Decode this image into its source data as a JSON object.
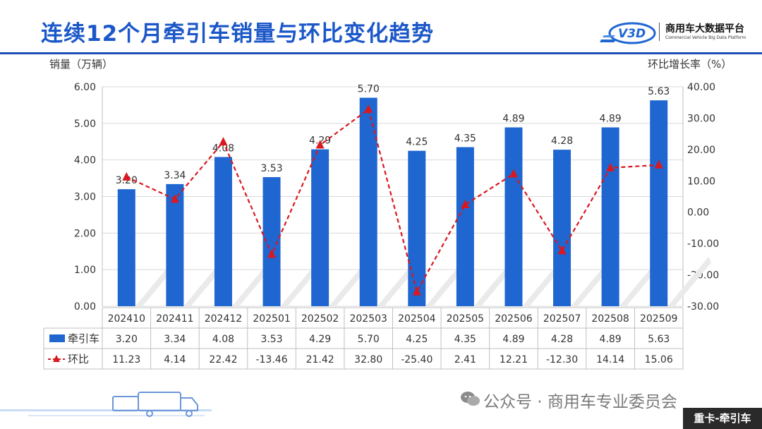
{
  "page": {
    "title": "连续12个月牵引车销量与环比变化趋势",
    "logo_cn": "商用车大数据平台",
    "logo_en": "Commercial Vehicle Big Data Platform",
    "logo_mark": "V3D",
    "footer": "公众号 · 商用车专业委员会",
    "tag": "重卡-牵引车",
    "colors": {
      "accent": "#1b57c8",
      "bar": "#1f66d1",
      "line": "#d9181f"
    }
  },
  "chart_data": {
    "type": "bar",
    "title": "连续12个月牵引车销量与环比变化趋势",
    "y_left_label": "销量（万辆）",
    "y_right_label": "环比增长率（%）",
    "categories": [
      "202410",
      "202411",
      "202412",
      "202501",
      "202502",
      "202503",
      "202504",
      "202505",
      "202506",
      "202507",
      "202508",
      "202509"
    ],
    "y_left_ticks": [
      "6.00",
      "5.00",
      "4.00",
      "3.00",
      "2.00",
      "1.00",
      "0.00"
    ],
    "y_right_ticks": [
      "40.00",
      "30.00",
      "20.00",
      "10.00",
      "0.00",
      "-10.00",
      "-20.00",
      "-30.00"
    ],
    "ylim_left": [
      0,
      6
    ],
    "ylim_right": [
      -30,
      40
    ],
    "grid": true,
    "legend": "data-table",
    "series": [
      {
        "name": "牵引车",
        "type": "bar",
        "axis": "left",
        "values": [
          3.2,
          3.34,
          4.08,
          3.53,
          4.29,
          5.7,
          4.25,
          4.35,
          4.89,
          4.28,
          4.89,
          5.63
        ],
        "labels": [
          "3.20",
          "3.34",
          "4.08",
          "3.53",
          "4.29",
          "5.70",
          "4.25",
          "4.35",
          "4.89",
          "4.28",
          "4.89",
          "5.63"
        ]
      },
      {
        "name": "环比",
        "type": "line",
        "axis": "right",
        "values": [
          11.23,
          4.14,
          22.42,
          -13.46,
          21.42,
          32.8,
          -25.4,
          2.41,
          12.21,
          -12.3,
          14.14,
          15.06
        ],
        "labels": [
          "11.23",
          "4.14",
          "22.42",
          "-13.46",
          "21.42",
          "32.80",
          "-25.40",
          "2.41",
          "12.21",
          "-12.30",
          "14.14",
          "15.06"
        ]
      }
    ]
  }
}
